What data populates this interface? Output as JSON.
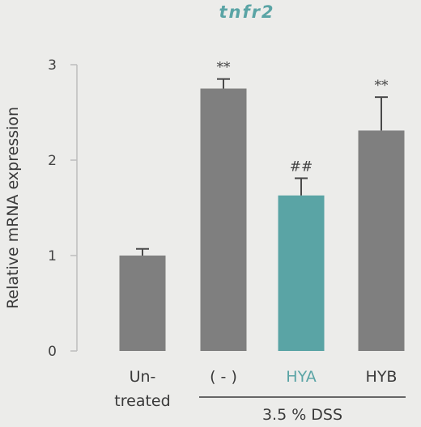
{
  "chart_data": {
    "type": "bar",
    "title": "tnfr2",
    "ylabel": "Relative mRNA expression",
    "xlabel": "",
    "ylim": [
      0,
      3
    ],
    "yticks": [
      0,
      1,
      2,
      3
    ],
    "grid": false,
    "categories": [
      {
        "lines": [
          "Un-",
          "treated"
        ]
      },
      {
        "lines": [
          "( - )"
        ]
      },
      {
        "lines": [
          "HYA"
        ]
      },
      {
        "lines": [
          "HYB"
        ]
      }
    ],
    "values": [
      1.0,
      2.75,
      1.63,
      2.31
    ],
    "errors": [
      0.07,
      0.1,
      0.18,
      0.35
    ],
    "annotations": [
      "",
      "**",
      "##",
      "**"
    ],
    "bar_colors": [
      "#7f7f7f",
      "#7f7f7f",
      "#5aa4a5",
      "#7f7f7f"
    ],
    "label_colors": [
      "#3a3a3a",
      "#3a3a3a",
      "#5aa4a5",
      "#3a3a3a"
    ],
    "group": {
      "label": "3.5 % DSS",
      "from_index": 1,
      "to_index": 3
    }
  },
  "colors": {
    "accent": "#5aa4a5",
    "bar": "#7f7f7f",
    "background": "#ececea",
    "axis": "#bdbdbd",
    "text": "#3a3a3a"
  }
}
